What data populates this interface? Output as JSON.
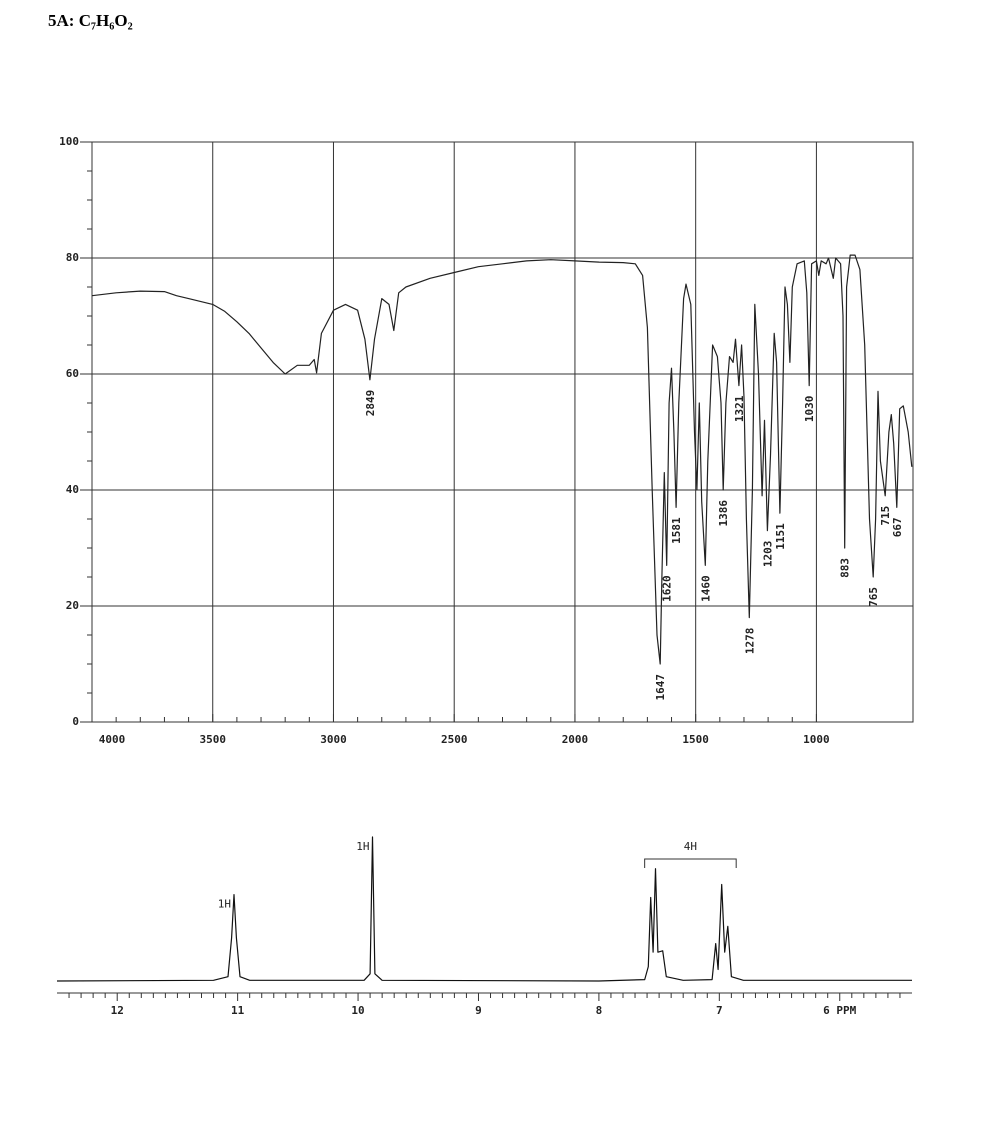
{
  "title": "5A: C₇H₆O₂",
  "chart_data": [
    {
      "type": "line",
      "color": "#222222",
      "grid": true,
      "xlim": [
        4000,
        600
      ],
      "xticks": [
        4000,
        3500,
        3000,
        2500,
        2000,
        1500,
        1000
      ],
      "ylim": [
        0,
        100
      ],
      "yticks": [
        0,
        20,
        40,
        60,
        80,
        100
      ],
      "x": [
        4000,
        3900,
        3800,
        3700,
        3650,
        3600,
        3500,
        3450,
        3400,
        3350,
        3300,
        3250,
        3200,
        3150,
        3100,
        3080,
        3070,
        3050,
        3000,
        2950,
        2900,
        2870,
        2849,
        2830,
        2800,
        2770,
        2750,
        2730,
        2700,
        2600,
        2500,
        2400,
        2300,
        2200,
        2100,
        2000,
        1900,
        1800,
        1750,
        1720,
        1700,
        1680,
        1660,
        1647,
        1640,
        1630,
        1625,
        1620,
        1610,
        1600,
        1590,
        1581,
        1570,
        1550,
        1540,
        1520,
        1505,
        1495,
        1485,
        1475,
        1460,
        1450,
        1430,
        1410,
        1395,
        1386,
        1375,
        1360,
        1345,
        1335,
        1321,
        1310,
        1300,
        1290,
        1278,
        1265,
        1255,
        1240,
        1225,
        1215,
        1203,
        1190,
        1175,
        1165,
        1151,
        1140,
        1130,
        1120,
        1110,
        1100,
        1080,
        1050,
        1040,
        1030,
        1020,
        1000,
        990,
        980,
        960,
        950,
        930,
        920,
        900,
        890,
        883,
        875,
        860,
        840,
        820,
        800,
        780,
        765,
        755,
        745,
        735,
        715,
        700,
        690,
        680,
        667,
        655,
        640,
        620,
        605
      ],
      "values": [
        73.5,
        74,
        74.3,
        74.2,
        73.5,
        73,
        72,
        70.8,
        69,
        67,
        64.5,
        62,
        60,
        61.5,
        61.5,
        62.5,
        60.2,
        67,
        71,
        72,
        71,
        66,
        59,
        66,
        73,
        72,
        67.5,
        74,
        75,
        76.5,
        77.5,
        78.5,
        79,
        79.5,
        79.7,
        79.5,
        79.3,
        79.2,
        79,
        77,
        68,
        40,
        15,
        10,
        25,
        43,
        35,
        27,
        55,
        61,
        50,
        37,
        55,
        73,
        75.5,
        72,
        50,
        40,
        55,
        38,
        27,
        45,
        65,
        63,
        55,
        40,
        55,
        63,
        62,
        66,
        58,
        65,
        56,
        35,
        18,
        40,
        72,
        60,
        39,
        52,
        33,
        46,
        67,
        62,
        36,
        55,
        75,
        72,
        62,
        75,
        79,
        79.5,
        74,
        58,
        79,
        79.5,
        77,
        79.5,
        79,
        80,
        76.5,
        80,
        79,
        70,
        30,
        75,
        80.5,
        80.5,
        78,
        65,
        35,
        25,
        35,
        57,
        45,
        39,
        50,
        53,
        48,
        37,
        54,
        54.5,
        50,
        44
      ],
      "peak_labels": [
        2849,
        1647,
        1620,
        1581,
        1460,
        1386,
        1321,
        1278,
        1203,
        1151,
        1030,
        883,
        765,
        715,
        667
      ]
    },
    {
      "type": "line",
      "color": "#111111",
      "xlim": [
        12.5,
        5.4
      ],
      "xticks": [
        12,
        11,
        10,
        9,
        8,
        7,
        {
          "value": 6,
          "label": "6 PPM"
        }
      ],
      "x": [
        12.5,
        11.2,
        11.08,
        11.05,
        11.03,
        11.01,
        10.98,
        10.9,
        9.95,
        9.9,
        9.88,
        9.86,
        9.8,
        8.0,
        7.62,
        7.59,
        7.57,
        7.55,
        7.53,
        7.51,
        7.47,
        7.44,
        7.3,
        7.06,
        7.03,
        7.01,
        6.98,
        6.955,
        6.93,
        6.9,
        6.8,
        5.4
      ],
      "values": [
        0,
        0.5,
        3,
        30,
        60,
        30,
        3,
        0.5,
        0.5,
        5,
        100,
        5,
        0.5,
        0,
        1,
        10,
        58,
        20,
        78,
        20,
        21,
        3,
        0.5,
        1,
        26,
        8,
        67,
        20,
        38,
        3,
        0.5,
        0.5
      ],
      "annotations": [
        {
          "text": "1H",
          "x": 11.03
        },
        {
          "text": "1H",
          "x": 9.88
        },
        {
          "text": "4H",
          "x": [
            7.62,
            6.86
          ]
        }
      ]
    }
  ]
}
